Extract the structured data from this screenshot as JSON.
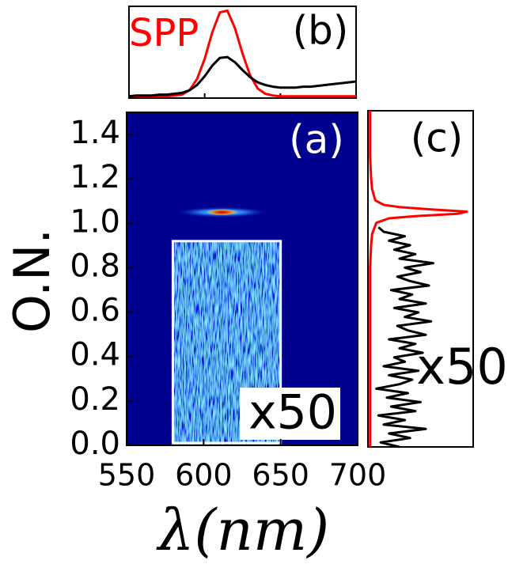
{
  "chart_data": [
    {
      "type": "heatmap",
      "label": "(a)",
      "xlabel": "λ(nm)",
      "ylabel": "O.N.",
      "xlim": [
        550,
        700
      ],
      "ylim": [
        0,
        1.5
      ],
      "xticks": [
        550,
        600,
        650,
        700
      ],
      "yticks": [
        {
          "value": 0,
          "label": "0.0"
        },
        0.2,
        0.4,
        0.6,
        0.8,
        {
          "value": 1,
          "label": "1.0"
        },
        1.2,
        1.4
      ],
      "peak": {
        "x": 612,
        "y": 1.05
      },
      "inset": {
        "xlim": [
          580,
          650
        ],
        "ylim": [
          0,
          0.92
        ],
        "label": "x50"
      }
    },
    {
      "type": "line",
      "label": "(b)",
      "xlim": [
        550,
        700
      ],
      "ylim": [
        0,
        1.05
      ],
      "xticks": [
        550,
        600,
        650,
        700
      ],
      "x": [
        550,
        555,
        560,
        565,
        570,
        575,
        580,
        585,
        590,
        595,
        600,
        605,
        610,
        615,
        620,
        625,
        630,
        635,
        640,
        645,
        650,
        655,
        660,
        665,
        670,
        675,
        680,
        685,
        690,
        695,
        700
      ],
      "series": [
        {
          "name": "SPP",
          "color": "#ff0000",
          "values": [
            0.02,
            0.02,
            0.02,
            0.02,
            0.02,
            0.02,
            0.03,
            0.04,
            0.09,
            0.22,
            0.45,
            0.75,
            0.98,
            1.0,
            0.8,
            0.51,
            0.26,
            0.11,
            0.05,
            0.03,
            0.02,
            0.02,
            0.02,
            0.02,
            0.02,
            0.02,
            0.02,
            0.02,
            0.02,
            0.02,
            0.02
          ]
        },
        {
          "color": "#000000",
          "values": [
            0.02,
            0.03,
            0.03,
            0.03,
            0.04,
            0.04,
            0.05,
            0.06,
            0.09,
            0.15,
            0.25,
            0.37,
            0.46,
            0.47,
            0.41,
            0.32,
            0.24,
            0.18,
            0.15,
            0.13,
            0.12,
            0.12,
            0.12,
            0.13,
            0.13,
            0.14,
            0.15,
            0.16,
            0.17,
            0.18,
            0.19
          ]
        }
      ]
    },
    {
      "type": "line",
      "label": "(c)",
      "annotation": "x50",
      "xlim": [
        0,
        1
      ],
      "ylim": [
        0,
        1.5
      ],
      "series": [
        {
          "color": "#ff0000",
          "y": [
            0,
            0.2,
            0.4,
            0.6,
            0.8,
            0.9,
            0.95,
            1.0,
            1.02,
            1.03,
            1.04,
            1.05,
            1.06,
            1.07,
            1.08,
            1.1,
            1.15,
            1.2,
            1.3,
            1.4,
            1.5
          ],
          "values": [
            0.02,
            0.02,
            0.02,
            0.02,
            0.02,
            0.03,
            0.04,
            0.08,
            0.2,
            0.45,
            0.85,
            0.94,
            0.6,
            0.3,
            0.15,
            0.07,
            0.04,
            0.03,
            0.02,
            0.02,
            0.02
          ]
        },
        {
          "color": "#000000",
          "y": [
            0,
            0.02,
            0.04,
            0.06,
            0.08,
            0.1,
            0.12,
            0.14,
            0.16,
            0.18,
            0.2,
            0.22,
            0.24,
            0.26,
            0.28,
            0.3,
            0.32,
            0.34,
            0.36,
            0.38,
            0.4,
            0.42,
            0.44,
            0.46,
            0.48,
            0.5,
            0.52,
            0.54,
            0.56,
            0.58,
            0.6,
            0.62,
            0.64,
            0.66,
            0.68,
            0.7,
            0.72,
            0.74,
            0.76,
            0.78,
            0.8,
            0.82,
            0.84,
            0.86,
            0.88,
            0.9,
            0.92,
            0.94,
            0.96,
            0.98
          ],
          "values": [
            0.3,
            0.12,
            0.4,
            0.2,
            0.55,
            0.15,
            0.35,
            0.1,
            0.45,
            0.22,
            0.5,
            0.18,
            0.38,
            0.08,
            0.3,
            0.42,
            0.2,
            0.48,
            0.15,
            0.35,
            0.25,
            0.52,
            0.3,
            0.45,
            0.2,
            0.55,
            0.38,
            0.28,
            0.6,
            0.35,
            0.48,
            0.25,
            0.55,
            0.3,
            0.42,
            0.22,
            0.58,
            0.4,
            0.28,
            0.5,
            0.35,
            0.62,
            0.3,
            0.45,
            0.25,
            0.4,
            0.2,
            0.35,
            0.15,
            0.1
          ]
        }
      ]
    }
  ]
}
